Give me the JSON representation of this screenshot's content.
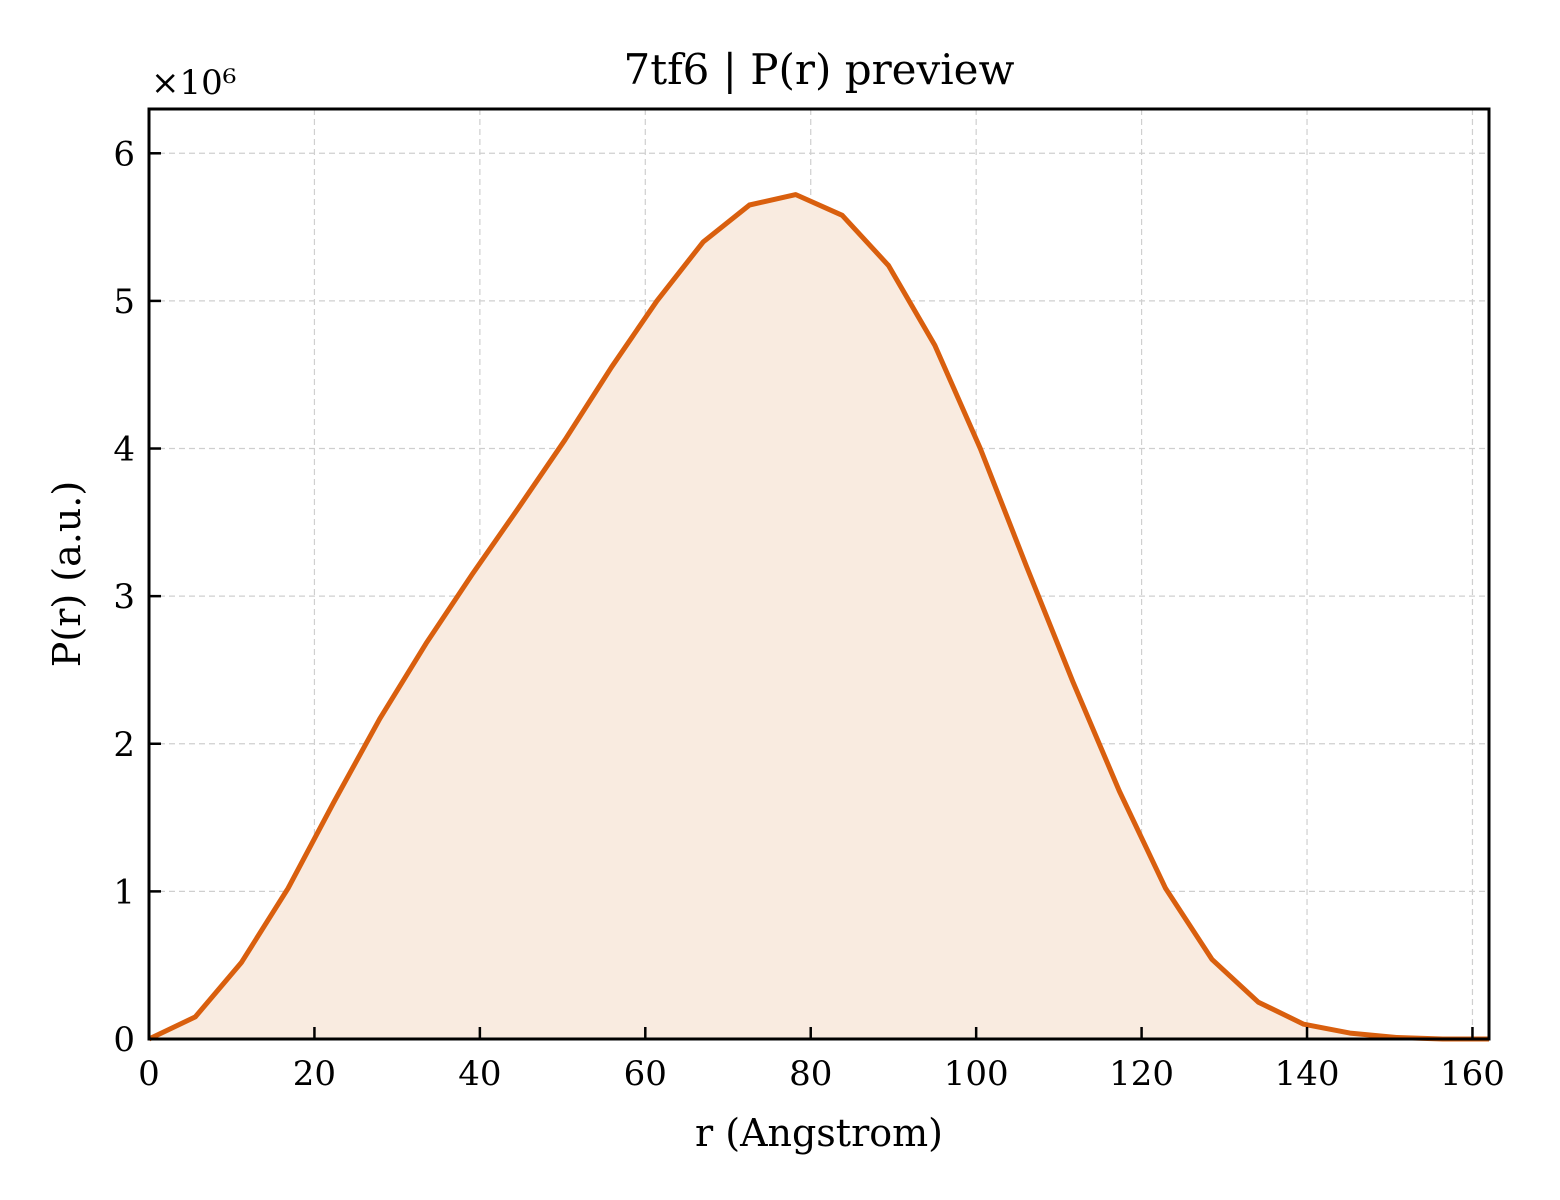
{
  "chart_data": {
    "type": "area",
    "title": "7tf6 | P(r) preview",
    "xlabel": "r (Angstrom)",
    "ylabel": "P(r) (a.u.)",
    "y_multiplier_label": "×10⁶",
    "xlim": [
      0,
      162
    ],
    "ylim": [
      0,
      6.3
    ],
    "xticks": [
      0,
      20,
      40,
      60,
      80,
      100,
      120,
      140,
      160
    ],
    "yticks": [
      0,
      1,
      2,
      3,
      4,
      5,
      6
    ],
    "grid": true,
    "colors": {
      "line": "#d95f0e",
      "fill": "#f9ebe0"
    },
    "series": [
      {
        "x": [
          0,
          5.6,
          11.2,
          16.8,
          22.3,
          27.9,
          33.5,
          39.1,
          44.7,
          50.3,
          55.9,
          61.4,
          67.0,
          72.6,
          78.2,
          83.8,
          89.4,
          95.0,
          100.5,
          106.1,
          111.7,
          117.3,
          122.9,
          128.5,
          134.1,
          139.6,
          145.2,
          150.8,
          156.4,
          162.0
        ],
        "values": [
          0.0,
          0.15,
          0.52,
          1.02,
          1.6,
          2.17,
          2.68,
          3.15,
          3.6,
          4.06,
          4.55,
          5.0,
          5.4,
          5.65,
          5.72,
          5.58,
          5.24,
          4.7,
          4.0,
          3.2,
          2.42,
          1.68,
          1.02,
          0.54,
          0.25,
          0.1,
          0.04,
          0.01,
          0.0,
          0.0
        ]
      }
    ]
  }
}
